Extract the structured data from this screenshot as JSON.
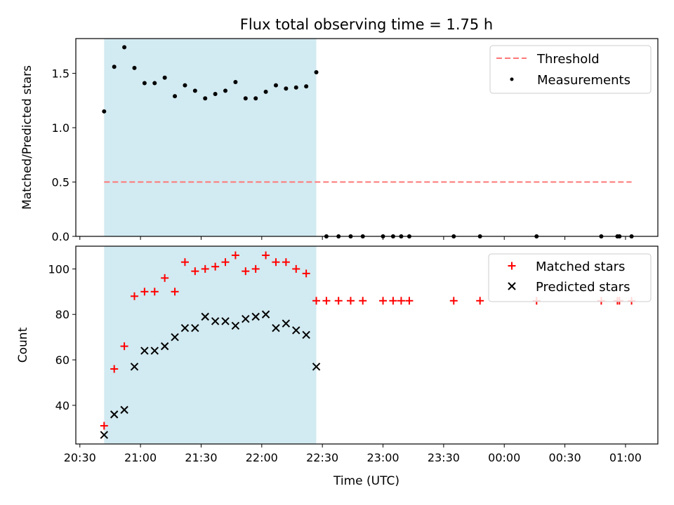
{
  "chart_data": [
    {
      "type": "scatter",
      "title": "Flux total observing time = 1.75 h",
      "xlabel": "",
      "ylabel": "Matched/Predicted stars",
      "ylim": [
        0,
        1.82
      ],
      "xlim": [
        "20:28",
        "01:16"
      ],
      "yticks": [
        0.0,
        0.5,
        1.0,
        1.5
      ],
      "ytick_labels": [
        "0.0",
        "0.5",
        "1.0",
        "1.5"
      ],
      "shaded_region": {
        "from": "20:42",
        "to": "22:27",
        "color": "#add8e6"
      },
      "legend": {
        "position": "top-right",
        "entries": [
          "Threshold",
          "Measurements"
        ]
      },
      "series": [
        {
          "name": "Threshold",
          "kind": "dashed-line",
          "color": "#ff7777",
          "x": [
            "20:42",
            "01:03"
          ],
          "y": [
            0.5,
            0.5
          ]
        },
        {
          "name": "Measurements",
          "kind": "points",
          "color": "#000000",
          "x": [
            "20:42",
            "20:47",
            "20:52",
            "20:57",
            "21:02",
            "21:07",
            "21:12",
            "21:17",
            "21:22",
            "21:27",
            "21:32",
            "21:37",
            "21:42",
            "21:47",
            "21:52",
            "21:57",
            "22:02",
            "22:07",
            "22:12",
            "22:17",
            "22:22",
            "22:27",
            "22:32",
            "22:38",
            "22:44",
            "22:50",
            "23:00",
            "23:05",
            "23:09",
            "23:13",
            "23:35",
            "23:48",
            "00:16",
            "00:48",
            "00:56",
            "00:57",
            "01:03"
          ],
          "y": [
            1.15,
            1.56,
            1.74,
            1.55,
            1.41,
            1.41,
            1.46,
            1.29,
            1.39,
            1.34,
            1.27,
            1.31,
            1.34,
            1.42,
            1.27,
            1.27,
            1.33,
            1.39,
            1.36,
            1.37,
            1.38,
            1.51,
            0,
            0,
            0,
            0,
            0,
            0,
            0,
            0,
            0,
            0,
            0,
            0,
            0,
            0,
            0
          ]
        }
      ]
    },
    {
      "type": "scatter",
      "title": "",
      "xlabel": "Time (UTC)",
      "ylabel": "Count",
      "ylim": [
        23,
        110
      ],
      "xlim": [
        "20:28",
        "01:16"
      ],
      "yticks": [
        40,
        60,
        80,
        100
      ],
      "ytick_labels": [
        "40",
        "60",
        "80",
        "100"
      ],
      "xticks": [
        "20:30",
        "21:00",
        "21:30",
        "22:00",
        "22:30",
        "23:00",
        "23:30",
        "00:00",
        "00:30",
        "01:00"
      ],
      "shaded_region": {
        "from": "20:42",
        "to": "22:27",
        "color": "#add8e6"
      },
      "legend": {
        "position": "top-right",
        "entries": [
          "Matched stars",
          "Predicted stars"
        ]
      },
      "series": [
        {
          "name": "Matched stars",
          "kind": "plus",
          "color": "#ff0000",
          "x": [
            "20:42",
            "20:47",
            "20:52",
            "20:57",
            "21:02",
            "21:07",
            "21:12",
            "21:17",
            "21:22",
            "21:27",
            "21:32",
            "21:37",
            "21:42",
            "21:47",
            "21:52",
            "21:57",
            "22:02",
            "22:07",
            "22:12",
            "22:17",
            "22:22",
            "22:27",
            "22:32",
            "22:38",
            "22:44",
            "22:50",
            "23:00",
            "23:05",
            "23:09",
            "23:13",
            "23:35",
            "23:48",
            "00:16",
            "00:48",
            "00:56",
            "00:57",
            "01:03"
          ],
          "y": [
            31,
            56,
            66,
            88,
            90,
            90,
            96,
            90,
            103,
            99,
            100,
            101,
            103,
            106,
            99,
            100,
            106,
            103,
            103,
            100,
            98,
            86,
            86,
            86,
            86,
            86,
            86,
            86,
            86,
            86,
            86,
            86,
            86,
            86,
            86,
            86,
            86
          ]
        },
        {
          "name": "Predicted stars",
          "kind": "x",
          "color": "#000000",
          "x": [
            "20:42",
            "20:47",
            "20:52",
            "20:57",
            "21:02",
            "21:07",
            "21:12",
            "21:17",
            "21:22",
            "21:27",
            "21:32",
            "21:37",
            "21:42",
            "21:47",
            "21:52",
            "21:57",
            "22:02",
            "22:07",
            "22:12",
            "22:17",
            "22:22",
            "22:27"
          ],
          "y": [
            27,
            36,
            38,
            57,
            64,
            64,
            66,
            70,
            74,
            74,
            79,
            77,
            77,
            75,
            78,
            79,
            80,
            74,
            76,
            73,
            71,
            57
          ]
        }
      ]
    }
  ]
}
